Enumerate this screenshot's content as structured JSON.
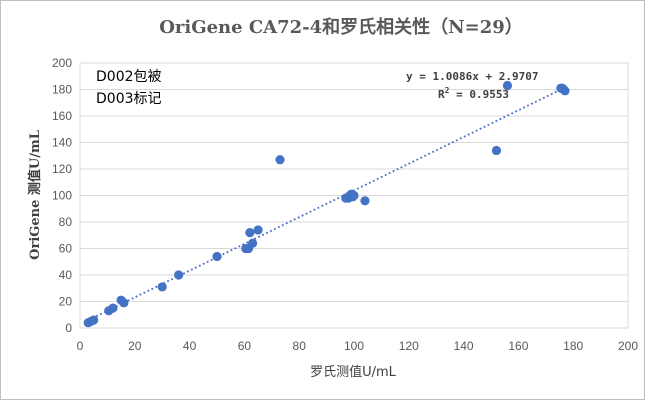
{
  "chart_data": {
    "type": "scatter",
    "title": "OriGene CA72-4和罗氏相关性（N=29）",
    "xlabel": "罗氏测值U/mL",
    "ylabel": "OriGene 测值U/mL",
    "xlim": [
      0,
      200
    ],
    "ylim": [
      0,
      200
    ],
    "x_ticks": [
      0,
      20,
      40,
      60,
      80,
      100,
      120,
      140,
      160,
      180,
      200
    ],
    "y_ticks": [
      0,
      20,
      40,
      60,
      80,
      100,
      120,
      140,
      160,
      180,
      200
    ],
    "grid": "horizontal",
    "marker_color": "#4472C4",
    "trendline": {
      "type": "linear",
      "style": "dotted",
      "slope": 1.0086,
      "intercept": 2.9707,
      "equation": "y = 1.0086x + 2.9707",
      "r2_label": "R",
      "r2_value": "= 0.9553",
      "color": "#4472C4"
    },
    "annotations": [
      "D002包被",
      "D003标记"
    ],
    "points": [
      {
        "x": 3,
        "y": 4
      },
      {
        "x": 4,
        "y": 5
      },
      {
        "x": 5,
        "y": 6
      },
      {
        "x": 10.5,
        "y": 13
      },
      {
        "x": 12,
        "y": 15
      },
      {
        "x": 15,
        "y": 21
      },
      {
        "x": 16,
        "y": 19
      },
      {
        "x": 30,
        "y": 31
      },
      {
        "x": 36,
        "y": 40
      },
      {
        "x": 50,
        "y": 54
      },
      {
        "x": 60.5,
        "y": 60
      },
      {
        "x": 61.5,
        "y": 60
      },
      {
        "x": 62,
        "y": 72
      },
      {
        "x": 63,
        "y": 64
      },
      {
        "x": 65,
        "y": 74
      },
      {
        "x": 73,
        "y": 127
      },
      {
        "x": 97,
        "y": 98
      },
      {
        "x": 98,
        "y": 98
      },
      {
        "x": 98.5,
        "y": 100
      },
      {
        "x": 99,
        "y": 101
      },
      {
        "x": 99.5,
        "y": 99
      },
      {
        "x": 100,
        "y": 100
      },
      {
        "x": 104,
        "y": 96
      },
      {
        "x": 152,
        "y": 134
      },
      {
        "x": 156,
        "y": 183
      },
      {
        "x": 175.5,
        "y": 181
      },
      {
        "x": 176,
        "y": 181
      },
      {
        "x": 176.5,
        "y": 180
      },
      {
        "x": 177,
        "y": 179
      }
    ]
  }
}
